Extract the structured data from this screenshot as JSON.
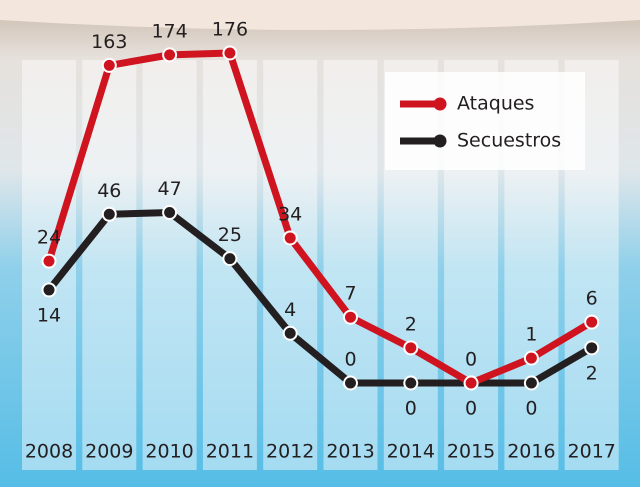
{
  "chart_data": {
    "type": "line",
    "categories": [
      "2008",
      "2009",
      "2010",
      "2011",
      "2012",
      "2013",
      "2014",
      "2015",
      "2016",
      "2017"
    ],
    "series": [
      {
        "name": "Ataques",
        "color": "#cf1420",
        "values": [
          24,
          163,
          174,
          176,
          34,
          7,
          2,
          0,
          1,
          6
        ]
      },
      {
        "name": "Secuestros",
        "color": "#231f20",
        "values": [
          14,
          46,
          47,
          25,
          4,
          0,
          0,
          0,
          0,
          2
        ]
      }
    ],
    "legend": "top-right"
  }
}
